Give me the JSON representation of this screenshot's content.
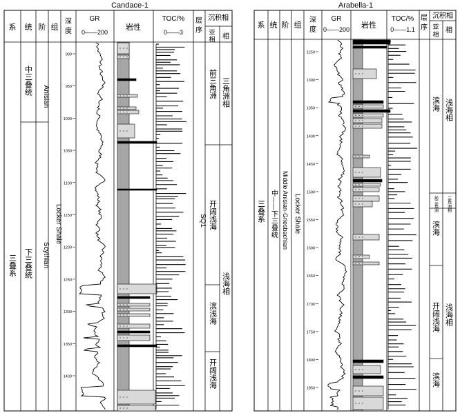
{
  "panels": [
    {
      "title": "Candace-1",
      "headers": {
        "system": "系",
        "series": "统",
        "stage": "阶",
        "formation": "组",
        "depth": "深度",
        "gr": "GR",
        "gr_scale": "0——200",
        "lithology": "岩性",
        "toc": "TOC/%",
        "toc_scale": "0——3",
        "sequence": "层序",
        "facies_group": "沉积相",
        "subfacies": "亚相",
        "facies": "相"
      },
      "system_label": "三叠系",
      "series_labels": [
        "中三叠统",
        "下三叠统"
      ],
      "stage_labels": [
        "Anisian",
        "Scythian"
      ],
      "formation_label": "Locker Shale",
      "sequence_label": "SQ1",
      "subfacies_labels": [
        "前三角洲",
        "开阔浅海",
        "滨浅海",
        "开阔浅海"
      ],
      "facies_labels": [
        "三角洲相",
        "浅海相"
      ],
      "depth_ticks": [
        "900",
        "950",
        "1000",
        "1050",
        "1100",
        "1150",
        "1200",
        "1250",
        "1300",
        "1350",
        "1400"
      ]
    },
    {
      "title": "Arabella-1",
      "headers": {
        "system": "系",
        "series": "统",
        "stage": "阶",
        "formation": "组",
        "depth": "深度",
        "gr": "GR",
        "gr_scale": "0——200",
        "lithology": "岩性",
        "toc": "TOC/%",
        "toc_scale": "0——1.1",
        "sequence": "层序",
        "facies_group": "沉积相",
        "subfacies": "亚相",
        "facies": "相"
      },
      "system_label": "三叠系",
      "series_label": "中——下三叠统",
      "stage_label": "Middle Anisian-Griesbachian",
      "formation_label": "Locker Shale",
      "subfacies_labels": [
        "滨海",
        "前三角洲",
        "滨海",
        "开阔浅海",
        "滨海"
      ],
      "facies_labels": [
        "浅海相",
        "三角洲相",
        "浅海相"
      ],
      "depth_ticks": [
        "1250",
        "1300",
        "1350",
        "1400",
        "1450",
        "1500",
        "1550",
        "1600",
        "1650",
        "1700",
        "1750",
        "1800",
        "1850"
      ]
    }
  ]
}
